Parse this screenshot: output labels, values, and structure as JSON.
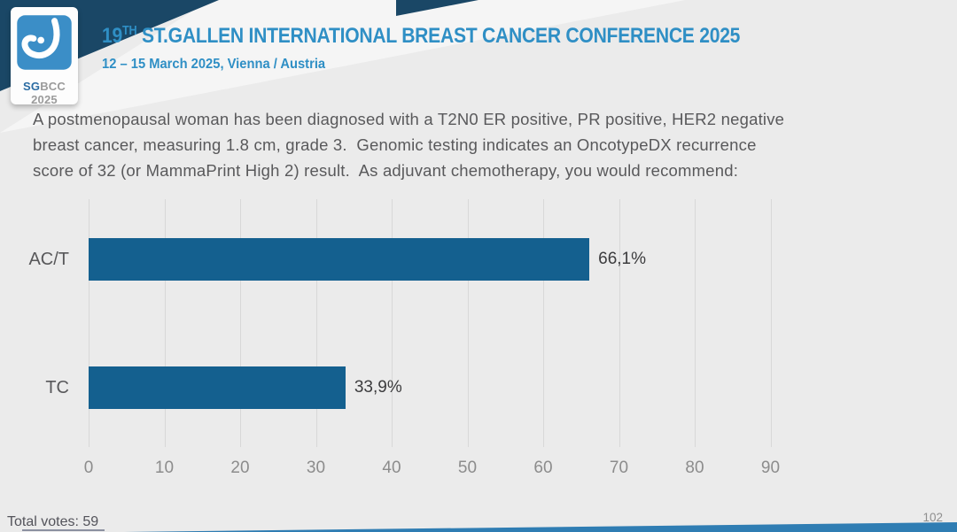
{
  "header": {
    "logo": {
      "icon_name": "sgbcc-breast-icon",
      "brand_bold": "SG",
      "brand_rest": "BCC 2025"
    },
    "title_number": "19",
    "title_ordinal": "TH",
    "title_rest": " ST.GALLEN INTERNATIONAL BREAST CANCER CONFERENCE 2025",
    "subtitle": "12 – 15 March 2025, Vienna / Austria",
    "accent_color": "#2f8fc5",
    "corner_color": "#1a4766",
    "logo_square_color": "#3b8ec7"
  },
  "question": {
    "lines": [
      "A postmenopausal woman has been diagnosed with a T2N0 ER positive, PR positive, HER2 negative",
      "breast cancer, measuring 1.8 cm, grade 3.  Genomic testing indicates an OncotypeDX recurrence",
      "score of 32 (or MammaPrint High 2) result.  As adjuvant chemotherapy, you would recommend:"
    ]
  },
  "chart_data": {
    "type": "bar",
    "orientation": "horizontal",
    "categories": [
      "AC/T",
      "TC"
    ],
    "values": [
      66.1,
      33.9
    ],
    "value_labels": [
      "66,1%",
      "33,9%"
    ],
    "x_ticks": [
      0,
      10,
      20,
      30,
      40,
      50,
      60,
      70,
      80,
      90
    ],
    "xlim": [
      0,
      100
    ],
    "grid": "vertical",
    "legend": "none",
    "bar_color": "#14608f"
  },
  "footer": {
    "total_votes": "Total votes: 59",
    "page_number": "102"
  }
}
